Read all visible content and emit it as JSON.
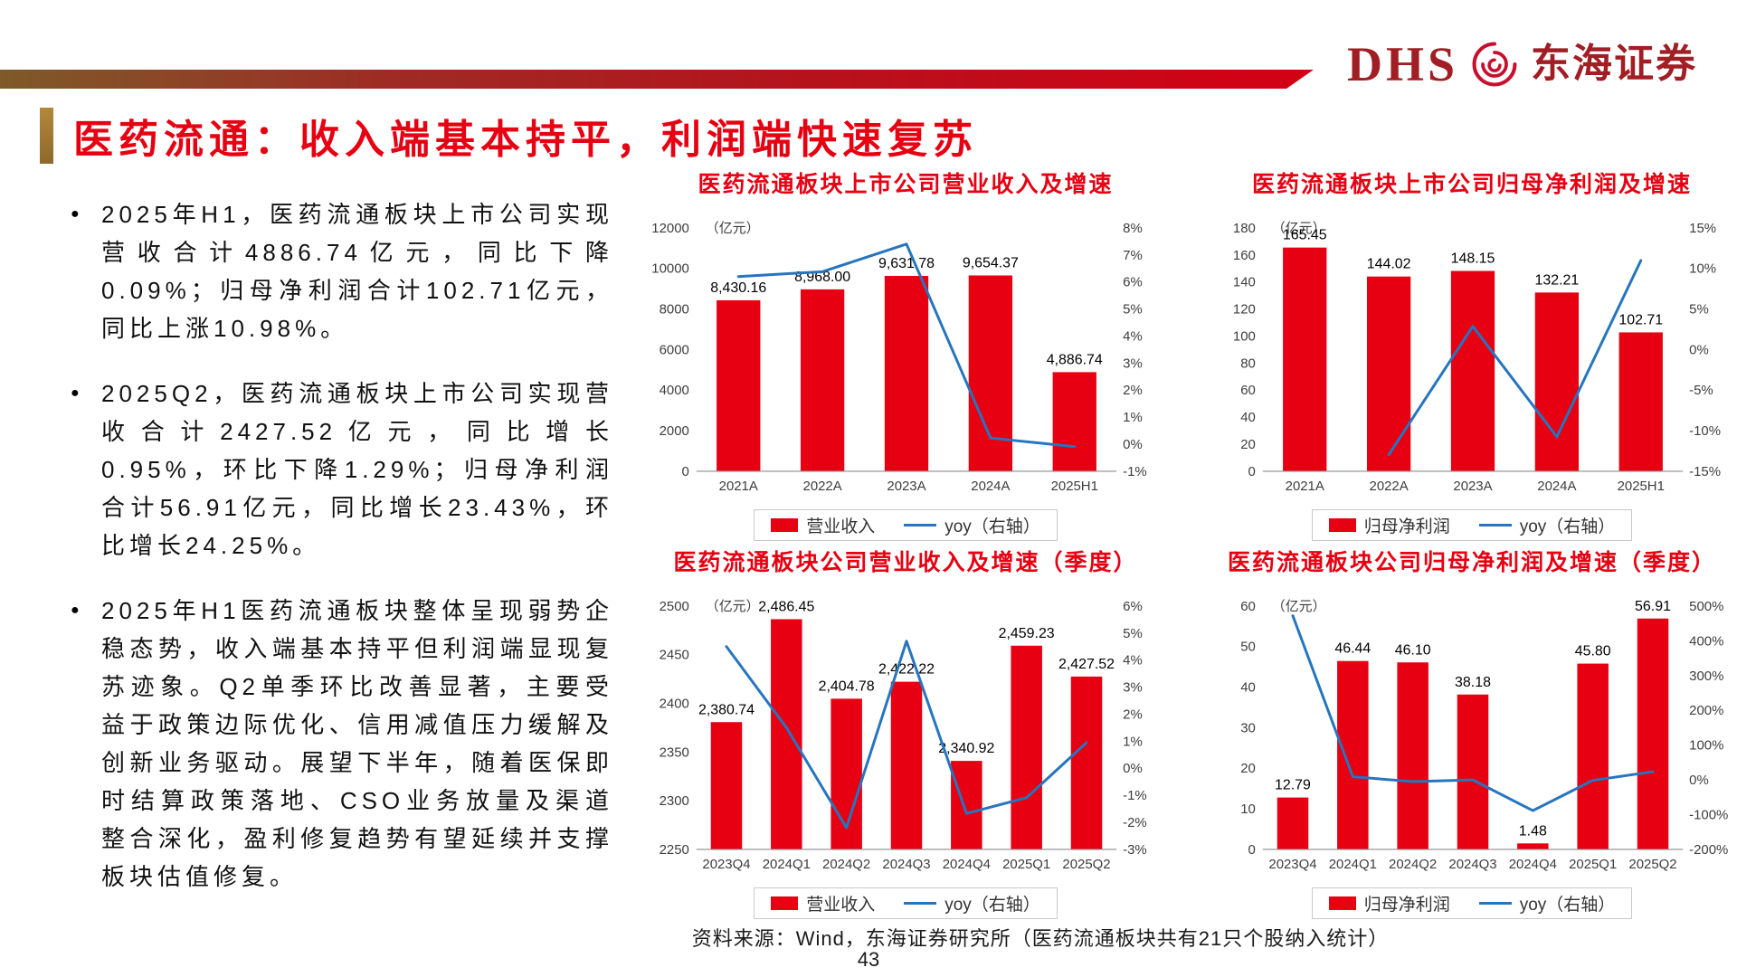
{
  "logo": {
    "dhs": "DHS",
    "company": "东海证券"
  },
  "title": "医药流通：收入端基本持平，利润端快速复苏",
  "bullet_glyph": "●",
  "bullets": [
    "2025年H1，医药流通板块上市公司实现营收合计4886.74亿元，同比下降0.09%；归母净利润合计102.71亿元，同比上涨10.98%。",
    "2025Q2，医药流通板块上市公司实现营收合计2427.52亿元，同比增长0.95%，环比下降1.29%；归母净利润合计56.91亿元，同比增长23.43%，环比增长24.25%。",
    "2025年H1医药流通板块整体呈现弱势企稳态势，收入端基本持平但利润端显现复苏迹象。Q2单季环比改善显著，主要受益于政策边际优化、信用减值压力缓解及创新业务驱动。展望下半年，随着医保即时结算政策落地、CSO业务放量及渠道整合深化，盈利修复趋势有望延续并支撑板块估值修复。"
  ],
  "colors": {
    "accent_red": "#e60012",
    "bar": "#e60012",
    "line": "#2675be",
    "logo_red": "#a01e24",
    "gold_marker": "#a9803a"
  },
  "charts": [
    {
      "type": "bar+line",
      "title": "医药流通板块上市公司营业收入及增速",
      "unit": "（亿元）",
      "categories": [
        "2021A",
        "2022A",
        "2023A",
        "2024A",
        "2025H1"
      ],
      "bars": [
        8430.16,
        8968.0,
        9631.78,
        9654.37,
        4886.74
      ],
      "bar_labels": [
        "8,430.16",
        "8,968.00",
        "9,631.78",
        "9,654.37",
        "4,886.74"
      ],
      "line": [
        6.2,
        6.38,
        7.4,
        0.23,
        -0.09
      ],
      "y_left": {
        "min": 0,
        "max": 12000,
        "step": 2000
      },
      "y_right": {
        "min": -1,
        "max": 8,
        "step": 1
      },
      "legend": [
        "营业收入",
        "yoy（右轴）"
      ]
    },
    {
      "type": "bar+line",
      "title": "医药流通板块上市公司归母净利润及增速",
      "unit": "（亿元）",
      "categories": [
        "2021A",
        "2022A",
        "2023A",
        "2024A",
        "2025H1"
      ],
      "bars": [
        165.45,
        144.02,
        148.15,
        132.21,
        102.71
      ],
      "bar_labels": [
        "165.45",
        "144.02",
        "148.15",
        "132.21",
        "102.71"
      ],
      "line": [
        null,
        -12.95,
        2.87,
        -10.76,
        10.98
      ],
      "y_left": {
        "min": 0,
        "max": 180,
        "step": 20
      },
      "y_right": {
        "min": -15,
        "max": 15,
        "step": 5
      },
      "legend": [
        "归母净利润",
        "yoy（右轴）"
      ]
    },
    {
      "type": "bar+line",
      "title": "医药流通板块公司营业收入及增速（季度）",
      "unit": "（亿元）",
      "categories": [
        "2023Q4",
        "2024Q1",
        "2024Q2",
        "2024Q3",
        "2024Q4",
        "2025Q1",
        "2025Q2"
      ],
      "bars": [
        2380.74,
        2486.45,
        2404.78,
        2422.22,
        2340.92,
        2459.23,
        2427.52
      ],
      "bar_labels": [
        "2,380.74",
        "2,486.45",
        "2,404.78",
        "2,422.22",
        "2,340.92",
        "2,459.23",
        "2,427.52"
      ],
      "line": [
        4.5,
        1.5,
        -2.2,
        4.7,
        -1.67,
        -1.09,
        0.95
      ],
      "y_left": {
        "min": 2250,
        "max": 2500,
        "step": 50
      },
      "y_right": {
        "min": -3,
        "max": 6,
        "step": 1
      },
      "legend": [
        "营业收入",
        "yoy（右轴）"
      ]
    },
    {
      "type": "bar+line",
      "title": "医药流通板块公司归母净利润及增速（季度）",
      "unit": "（亿元）",
      "categories": [
        "2023Q4",
        "2024Q1",
        "2024Q2",
        "2024Q3",
        "2024Q4",
        "2025Q1",
        "2025Q2"
      ],
      "bars": [
        12.79,
        46.44,
        46.1,
        38.18,
        1.48,
        45.8,
        56.91
      ],
      "bar_labels": [
        "12.79",
        "46.44",
        "46.10",
        "38.18",
        "1.48",
        "45.80",
        "56.91"
      ],
      "line": [
        472,
        9,
        -5,
        0,
        -88.4,
        -1.4,
        23.43
      ],
      "y_left": {
        "min": 0,
        "max": 60,
        "step": 10
      },
      "y_right": {
        "min": -200,
        "max": 500,
        "step": 100
      },
      "legend": [
        "归母净利润",
        "yoy（右轴）"
      ]
    }
  ],
  "footer": {
    "source": "资料来源：Wind，东海证券研究所（医药流通板块共有21只个股纳入统计）",
    "page": "43"
  }
}
